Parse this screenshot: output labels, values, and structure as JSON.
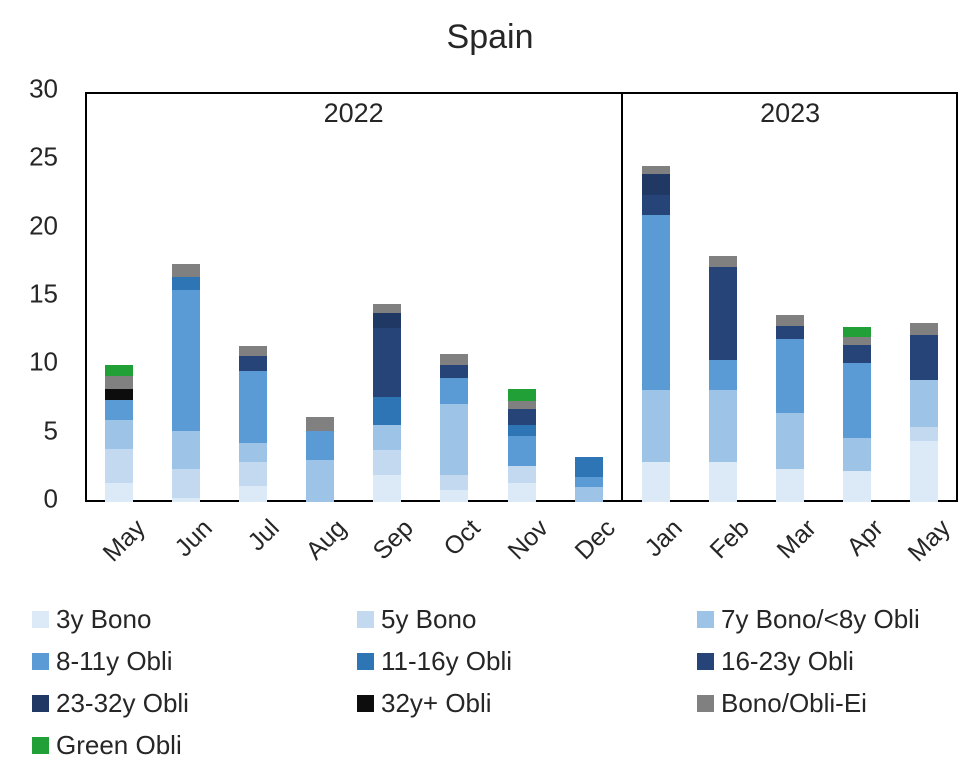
{
  "title": "Spain",
  "chart_data": {
    "type": "bar",
    "stacked": true,
    "title": "Spain",
    "xlabel": "",
    "ylabel": "",
    "ylim": [
      0,
      30
    ],
    "yticks": [
      0,
      5,
      10,
      15,
      20,
      25,
      30
    ],
    "grid": false,
    "legend_position": "bottom",
    "categories": [
      "May",
      "Jun",
      "Jul",
      "Aug",
      "Sep",
      "Oct",
      "Nov",
      "Dec",
      "Jan",
      "Feb",
      "Mar",
      "Apr",
      "May"
    ],
    "year_groups": [
      {
        "label": "2022",
        "start": 0,
        "count": 8
      },
      {
        "label": "2023",
        "start": 8,
        "count": 5
      }
    ],
    "series": [
      {
        "name": "3y Bono",
        "color": "#dce9f7",
        "values": [
          1.4,
          0.3,
          1.2,
          0.0,
          2.0,
          0.9,
          1.4,
          0.0,
          2.9,
          2.9,
          2.4,
          2.3,
          4.5
        ]
      },
      {
        "name": "5y Bono",
        "color": "#c3d9f0",
        "values": [
          2.5,
          2.1,
          1.7,
          0.0,
          1.8,
          1.1,
          1.2,
          0.0,
          0.0,
          0.0,
          0.0,
          0.0,
          1.0
        ]
      },
      {
        "name": "7y Bono/<8y Obli",
        "color": "#9dc3e6",
        "values": [
          2.1,
          2.8,
          1.4,
          3.1,
          1.8,
          5.2,
          0.0,
          1.1,
          5.3,
          5.3,
          4.1,
          2.4,
          3.4
        ]
      },
      {
        "name": "8-11y Obli",
        "color": "#5b9bd5",
        "values": [
          1.5,
          10.3,
          5.3,
          2.1,
          0.0,
          1.9,
          2.2,
          0.7,
          12.8,
          2.2,
          5.4,
          5.5,
          0.0
        ]
      },
      {
        "name": "11-16y Obli",
        "color": "#2e75b6",
        "values": [
          0.0,
          1.0,
          0.0,
          0.0,
          2.1,
          0.0,
          0.8,
          1.5,
          0.0,
          0.0,
          0.0,
          0.0,
          0.0
        ]
      },
      {
        "name": "16-23y Obli",
        "color": "#264478",
        "values": [
          0.0,
          0.0,
          1.1,
          0.0,
          5.0,
          0.9,
          1.2,
          0.0,
          1.5,
          6.8,
          1.0,
          1.3,
          3.3
        ]
      },
      {
        "name": "23-32y Obli",
        "color": "#1f3864",
        "values": [
          0.0,
          0.0,
          0.0,
          0.0,
          1.1,
          0.0,
          0.0,
          0.0,
          1.5,
          0.0,
          0.0,
          0.0,
          0.0
        ]
      },
      {
        "name": "32y+ Obli",
        "color": "#0d0d0d",
        "values": [
          0.8,
          0.0,
          0.0,
          0.0,
          0.0,
          0.0,
          0.0,
          0.0,
          0.0,
          0.0,
          0.0,
          0.0,
          0.0
        ]
      },
      {
        "name": "Bono/Obli-Ei",
        "color": "#808080",
        "values": [
          0.9,
          0.9,
          0.7,
          1.0,
          0.7,
          0.8,
          0.6,
          0.0,
          0.6,
          0.8,
          0.8,
          0.6,
          0.9
        ]
      },
      {
        "name": "Green Obli",
        "color": "#21a038",
        "values": [
          0.8,
          0.0,
          0.0,
          0.0,
          0.0,
          0.0,
          0.9,
          0.0,
          0.0,
          0.0,
          0.0,
          0.7,
          0.0
        ]
      }
    ]
  }
}
